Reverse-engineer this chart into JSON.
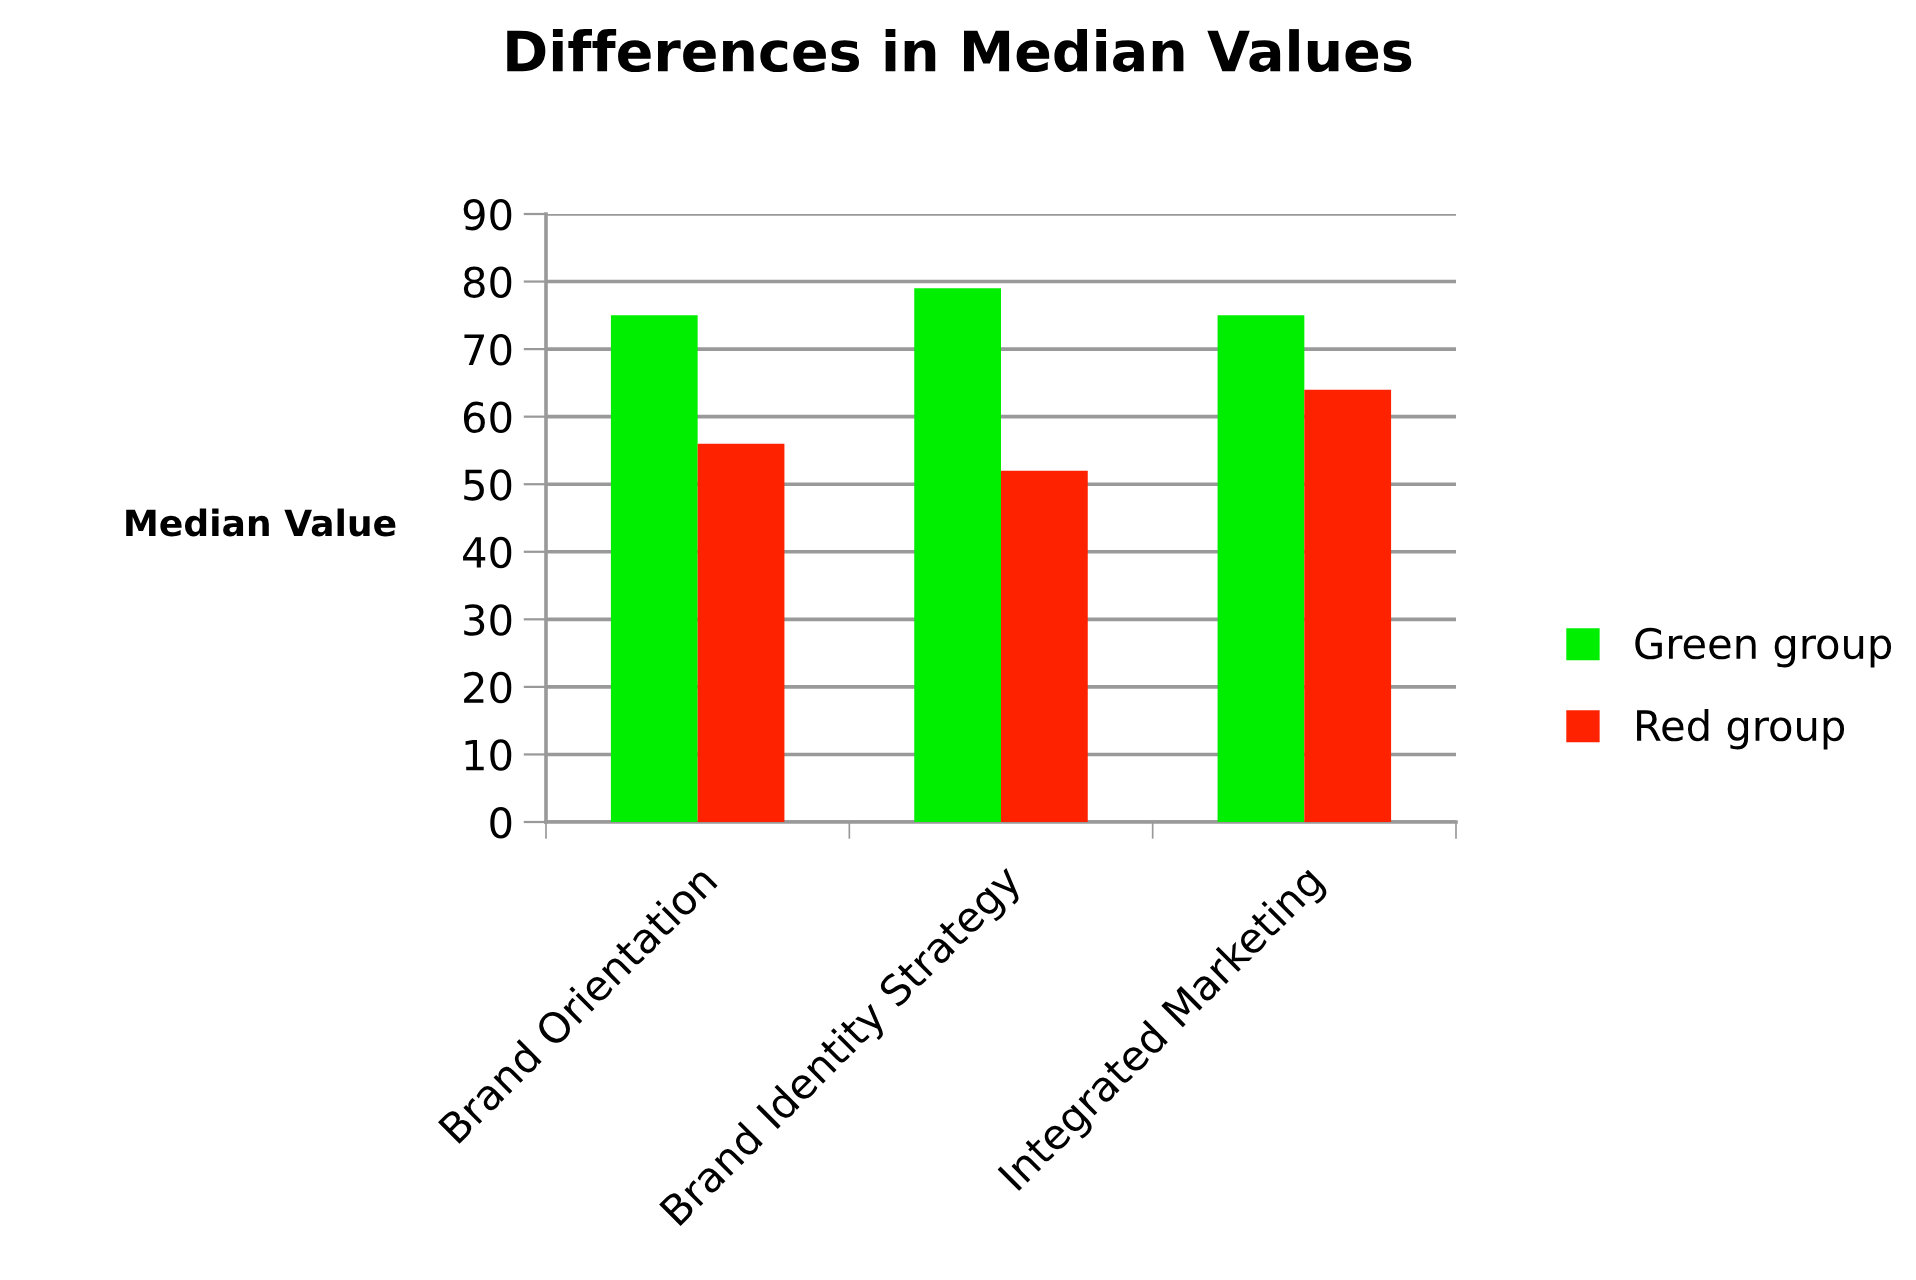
{
  "chart_data": {
    "type": "bar",
    "title": "Differences in Median Values",
    "ylabel": "Median Value",
    "categories": [
      "Brand Orientation",
      "Brand Identity Strategy",
      "Integrated Marketing"
    ],
    "series": [
      {
        "name": "Green group",
        "color": "#00ee00",
        "values": [
          75,
          79,
          75
        ]
      },
      {
        "name": "Red group",
        "color": "#ff2200",
        "values": [
          56,
          52,
          64
        ]
      }
    ],
    "ylim": [
      0,
      90
    ],
    "yticks": [
      0,
      10,
      20,
      30,
      40,
      50,
      60,
      70,
      80,
      90
    ],
    "grid": "y",
    "legend": "right"
  }
}
